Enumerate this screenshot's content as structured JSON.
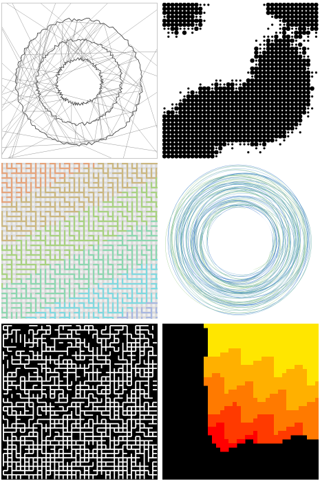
{
  "gallery": {
    "tiles": [
      {
        "id": "rings-triangulation",
        "palette": {
          "stroke": "#333333",
          "background": "#ffffff"
        }
      },
      {
        "id": "dot-noise",
        "palette": {
          "dot": "#000000",
          "background": "#ffffff"
        }
      },
      {
        "id": "colored-maze",
        "palette": {
          "colors": [
            "#e89a6a",
            "#c8b070",
            "#9fd070",
            "#7fd6a8",
            "#6fd8e0",
            "#9fb0e0"
          ],
          "wall": "#f2f2f2"
        }
      },
      {
        "id": "torus-curves",
        "palette": {
          "colors": [
            "#3a78c8",
            "#5aa8a0",
            "#9ccd8a",
            "#7bb3d6"
          ]
        }
      },
      {
        "id": "bw-maze",
        "palette": {
          "path": "#ffffff",
          "background": "#000000"
        }
      },
      {
        "id": "heat-regions",
        "palette": {
          "colors": [
            "#ffe600",
            "#ffb000",
            "#ff7a00",
            "#ff3a00",
            "#ff0000",
            "#000000"
          ]
        }
      }
    ]
  }
}
